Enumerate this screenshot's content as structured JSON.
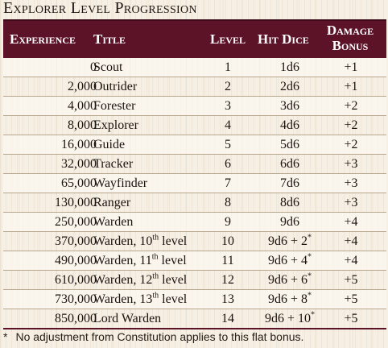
{
  "title": "Explorer Level Progression",
  "headers": {
    "experience": "Experience",
    "title": "Title",
    "level": "Level",
    "hit_dice": "Hit Dice",
    "damage_bonus_1": "Damage",
    "damage_bonus_2": "Bonus"
  },
  "rows": [
    {
      "experience": "0",
      "title": "Scout",
      "title_sup": "",
      "title_tail": "",
      "level": "1",
      "hit_dice": "1d6",
      "hd_sup": "",
      "damage": "+1"
    },
    {
      "experience": "2,000",
      "title": "Outrider",
      "title_sup": "",
      "title_tail": "",
      "level": "2",
      "hit_dice": "2d6",
      "hd_sup": "",
      "damage": "+1"
    },
    {
      "experience": "4,000",
      "title": "Forester",
      "title_sup": "",
      "title_tail": "",
      "level": "3",
      "hit_dice": "3d6",
      "hd_sup": "",
      "damage": "+2"
    },
    {
      "experience": "8,000",
      "title": "Explorer",
      "title_sup": "",
      "title_tail": "",
      "level": "4",
      "hit_dice": "4d6",
      "hd_sup": "",
      "damage": "+2"
    },
    {
      "experience": "16,000",
      "title": "Guide",
      "title_sup": "",
      "title_tail": "",
      "level": "5",
      "hit_dice": "5d6",
      "hd_sup": "",
      "damage": "+2"
    },
    {
      "experience": "32,000",
      "title": "Tracker",
      "title_sup": "",
      "title_tail": "",
      "level": "6",
      "hit_dice": "6d6",
      "hd_sup": "",
      "damage": "+3"
    },
    {
      "experience": "65,000",
      "title": "Wayfinder",
      "title_sup": "",
      "title_tail": "",
      "level": "7",
      "hit_dice": "7d6",
      "hd_sup": "",
      "damage": "+3"
    },
    {
      "experience": "130,000",
      "title": "Ranger",
      "title_sup": "",
      "title_tail": "",
      "level": "8",
      "hit_dice": "8d6",
      "hd_sup": "",
      "damage": "+3"
    },
    {
      "experience": "250,000",
      "title": "Warden",
      "title_sup": "",
      "title_tail": "",
      "level": "9",
      "hit_dice": "9d6",
      "hd_sup": "",
      "damage": "+4"
    },
    {
      "experience": "370,000",
      "title": "Warden, 10",
      "title_sup": "th",
      "title_tail": " level",
      "level": "10",
      "hit_dice": "9d6 + 2",
      "hd_sup": "*",
      "damage": "+4"
    },
    {
      "experience": "490,000",
      "title": "Warden, 11",
      "title_sup": "th",
      "title_tail": " level",
      "level": "11",
      "hit_dice": "9d6 + 4",
      "hd_sup": "*",
      "damage": "+4"
    },
    {
      "experience": "610,000",
      "title": "Warden, 12",
      "title_sup": "th",
      "title_tail": " level",
      "level": "12",
      "hit_dice": "9d6 + 6",
      "hd_sup": "*",
      "damage": "+5"
    },
    {
      "experience": "730,000",
      "title": "Warden, 13",
      "title_sup": "th",
      "title_tail": " level",
      "level": "13",
      "hit_dice": "9d6 + 8",
      "hd_sup": "*",
      "damage": "+5"
    },
    {
      "experience": "850,000",
      "title": "Lord Warden",
      "title_sup": "",
      "title_tail": "",
      "level": "14",
      "hit_dice": "9d6 + 10",
      "hd_sup": "*",
      "damage": "+5"
    }
  ],
  "footnote": {
    "marker": "*",
    "text": "No adjustment from Constitution applies to this flat bonus."
  },
  "colors": {
    "header_bg": "#5c1328",
    "header_text": "#ffffff",
    "page_bg": "#f6efe3"
  }
}
